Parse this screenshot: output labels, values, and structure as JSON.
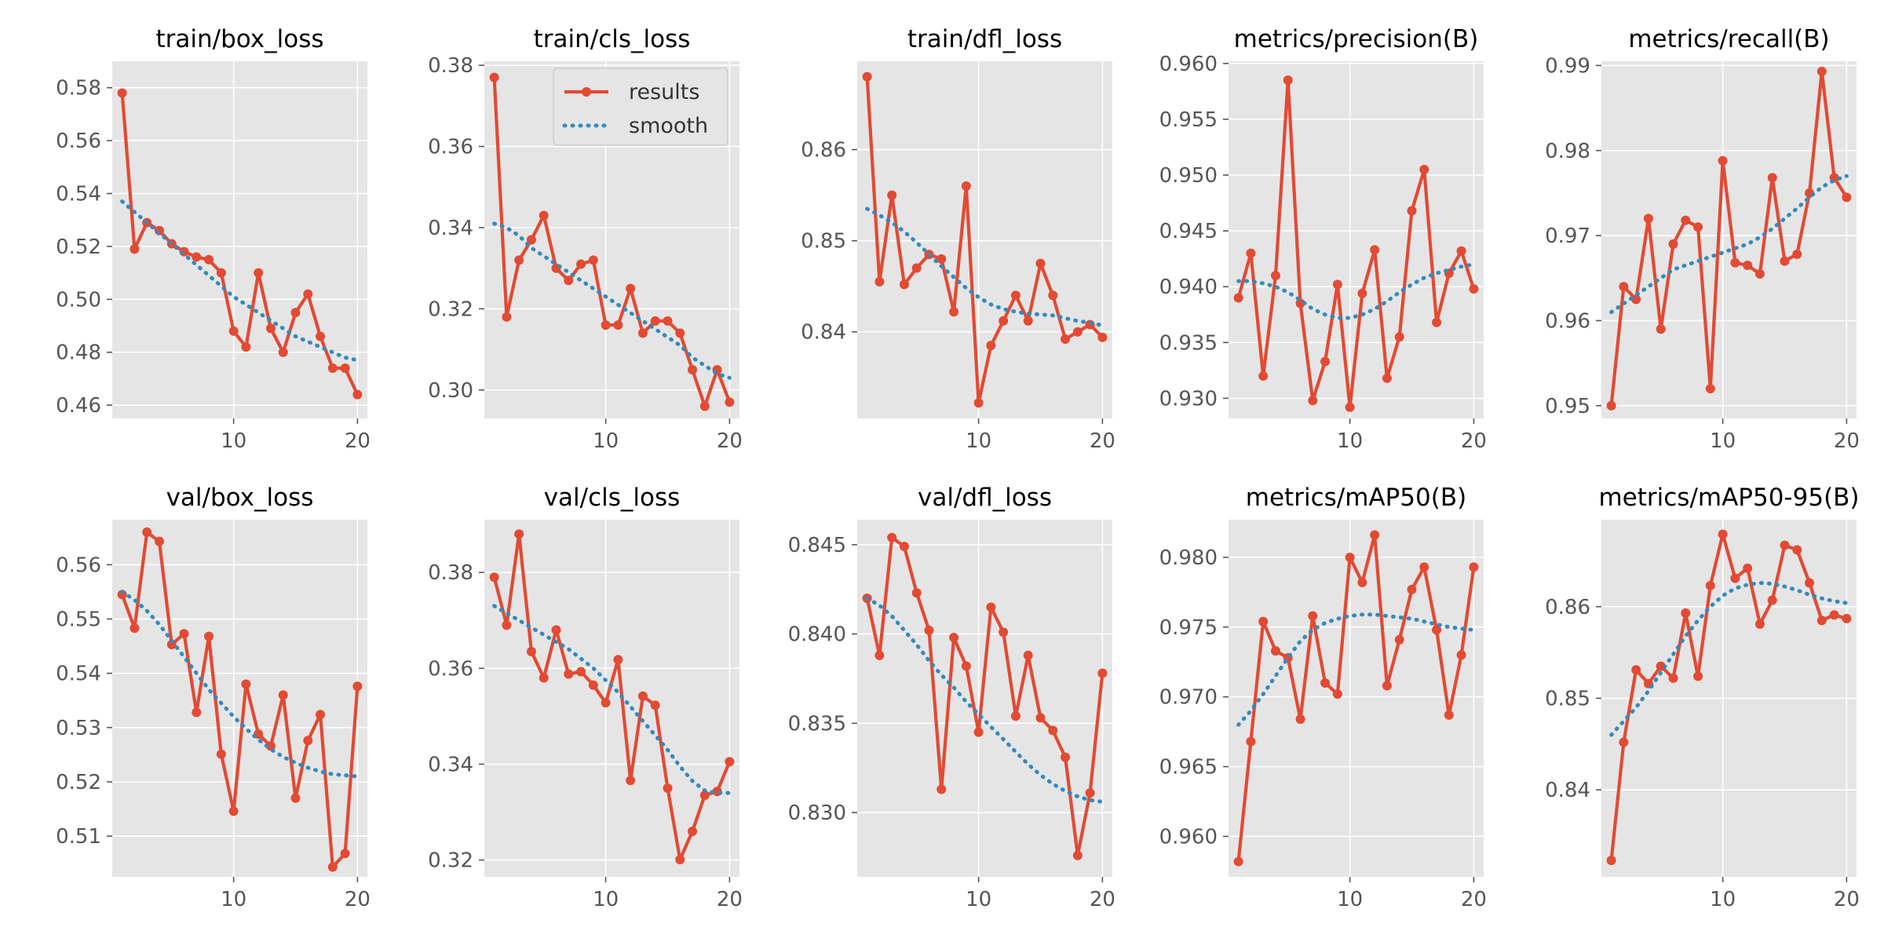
{
  "colors": {
    "results": "#e24a33",
    "smooth": "#348abd",
    "panel_bg": "#e5e5e5",
    "grid": "#ffffff"
  },
  "legend": {
    "results_label": "results",
    "smooth_label": "smooth"
  },
  "chart_data": [
    {
      "type": "line",
      "title": "train/box_loss",
      "x": [
        1,
        2,
        3,
        4,
        5,
        6,
        7,
        8,
        9,
        10,
        11,
        12,
        13,
        14,
        15,
        16,
        17,
        18,
        19,
        20
      ],
      "series": [
        {
          "name": "results",
          "values": [
            0.578,
            0.519,
            0.529,
            0.526,
            0.521,
            0.518,
            0.516,
            0.515,
            0.51,
            0.488,
            0.482,
            0.51,
            0.489,
            0.48,
            0.495,
            0.502,
            0.486,
            0.474,
            0.474,
            0.464
          ]
        },
        {
          "name": "smooth",
          "values": [
            0.537,
            0.533,
            0.529,
            0.525,
            0.521,
            0.517,
            0.513,
            0.509,
            0.505,
            0.501,
            0.498,
            0.495,
            0.492,
            0.489,
            0.486,
            0.484,
            0.482,
            0.48,
            0.478,
            0.477
          ]
        }
      ],
      "xlim": [
        0.2,
        20.8
      ],
      "ylim": [
        0.455,
        0.59
      ],
      "xticks": [
        10,
        20
      ],
      "yticks": [
        0.46,
        0.48,
        0.5,
        0.52,
        0.54,
        0.56,
        0.58
      ],
      "ytick_labels": [
        "0.46",
        "0.48",
        "0.50",
        "0.52",
        "0.54",
        "0.56",
        "0.58"
      ]
    },
    {
      "type": "line",
      "title": "train/cls_loss",
      "legend": "top-right",
      "x": [
        1,
        2,
        3,
        4,
        5,
        6,
        7,
        8,
        9,
        10,
        11,
        12,
        13,
        14,
        15,
        16,
        17,
        18,
        19,
        20
      ],
      "series": [
        {
          "name": "results",
          "values": [
            0.377,
            0.318,
            0.332,
            0.337,
            0.343,
            0.33,
            0.327,
            0.331,
            0.332,
            0.316,
            0.316,
            0.325,
            0.314,
            0.317,
            0.317,
            0.314,
            0.305,
            0.296,
            0.305,
            0.297
          ]
        },
        {
          "name": "smooth",
          "values": [
            0.341,
            0.34,
            0.338,
            0.335,
            0.333,
            0.331,
            0.329,
            0.327,
            0.325,
            0.323,
            0.321,
            0.319,
            0.317,
            0.315,
            0.313,
            0.311,
            0.308,
            0.306,
            0.304,
            0.303
          ]
        }
      ],
      "xlim": [
        0.2,
        20.8
      ],
      "ylim": [
        0.293,
        0.381
      ],
      "xticks": [
        10,
        20
      ],
      "yticks": [
        0.3,
        0.32,
        0.34,
        0.36,
        0.38
      ],
      "ytick_labels": [
        "0.30",
        "0.32",
        "0.34",
        "0.36",
        "0.38"
      ]
    },
    {
      "type": "line",
      "title": "train/dfl_loss",
      "x": [
        1,
        2,
        3,
        4,
        5,
        6,
        7,
        8,
        9,
        10,
        11,
        12,
        13,
        14,
        15,
        16,
        17,
        18,
        19,
        20
      ],
      "series": [
        {
          "name": "results",
          "values": [
            0.868,
            0.8455,
            0.855,
            0.8452,
            0.847,
            0.8485,
            0.848,
            0.8422,
            0.856,
            0.8322,
            0.8385,
            0.8412,
            0.844,
            0.8412,
            0.8475,
            0.844,
            0.8392,
            0.84,
            0.8408,
            0.8394
          ]
        },
        {
          "name": "smooth",
          "values": [
            0.8535,
            0.8528,
            0.852,
            0.851,
            0.8498,
            0.8485,
            0.8472,
            0.846,
            0.8448,
            0.8438,
            0.843,
            0.8425,
            0.8422,
            0.842,
            0.8419,
            0.8418,
            0.8415,
            0.8412,
            0.841,
            0.8407
          ]
        }
      ],
      "xlim": [
        0.2,
        20.8
      ],
      "ylim": [
        0.8305,
        0.8697
      ],
      "xticks": [
        10,
        20
      ],
      "yticks": [
        0.84,
        0.85,
        0.86
      ],
      "ytick_labels": [
        "0.84",
        "0.85",
        "0.86"
      ]
    },
    {
      "type": "line",
      "title": "metrics/precision(B)",
      "x": [
        1,
        2,
        3,
        4,
        5,
        6,
        7,
        8,
        9,
        10,
        11,
        12,
        13,
        14,
        15,
        16,
        17,
        18,
        19,
        20
      ],
      "series": [
        {
          "name": "results",
          "values": [
            0.939,
            0.943,
            0.932,
            0.941,
            0.9585,
            0.9385,
            0.9298,
            0.9333,
            0.9402,
            0.9292,
            0.9394,
            0.9433,
            0.9318,
            0.9355,
            0.9468,
            0.9505,
            0.9368,
            0.9412,
            0.9432,
            0.9398
          ]
        },
        {
          "name": "smooth",
          "values": [
            0.9405,
            0.9405,
            0.9403,
            0.94,
            0.9395,
            0.9388,
            0.938,
            0.9375,
            0.9372,
            0.9372,
            0.9375,
            0.938,
            0.9387,
            0.9395,
            0.9402,
            0.9408,
            0.9412,
            0.9415,
            0.9418,
            0.942
          ]
        }
      ],
      "xlim": [
        0.2,
        20.8
      ],
      "ylim": [
        0.9282,
        0.9602
      ],
      "xticks": [
        10,
        20
      ],
      "yticks": [
        0.93,
        0.935,
        0.94,
        0.945,
        0.95,
        0.955,
        0.96
      ],
      "ytick_labels": [
        "0.930",
        "0.935",
        "0.940",
        "0.945",
        "0.950",
        "0.955",
        "0.960"
      ]
    },
    {
      "type": "line",
      "title": "metrics/recall(B)",
      "x": [
        1,
        2,
        3,
        4,
        5,
        6,
        7,
        8,
        9,
        10,
        11,
        12,
        13,
        14,
        15,
        16,
        17,
        18,
        19,
        20
      ],
      "series": [
        {
          "name": "results",
          "values": [
            0.95,
            0.964,
            0.9625,
            0.972,
            0.959,
            0.969,
            0.9718,
            0.971,
            0.952,
            0.9788,
            0.9668,
            0.9665,
            0.9655,
            0.9768,
            0.967,
            0.9678,
            0.975,
            0.9893,
            0.9768,
            0.9745
          ]
        },
        {
          "name": "smooth",
          "values": [
            0.961,
            0.962,
            0.963,
            0.964,
            0.965,
            0.966,
            0.9665,
            0.967,
            0.9675,
            0.968,
            0.9685,
            0.969,
            0.9698,
            0.9708,
            0.972,
            0.9732,
            0.9745,
            0.9757,
            0.9765,
            0.977
          ]
        }
      ],
      "xlim": [
        0.2,
        20.8
      ],
      "ylim": [
        0.9485,
        0.9905
      ],
      "xticks": [
        10,
        20
      ],
      "yticks": [
        0.95,
        0.96,
        0.97,
        0.98,
        0.99
      ],
      "ytick_labels": [
        "0.95",
        "0.96",
        "0.97",
        "0.98",
        "0.99"
      ]
    },
    {
      "type": "line",
      "title": "val/box_loss",
      "x": [
        1,
        2,
        3,
        4,
        5,
        6,
        7,
        8,
        9,
        10,
        11,
        12,
        13,
        14,
        15,
        16,
        17,
        18,
        19,
        20
      ],
      "series": [
        {
          "name": "results",
          "values": [
            0.5545,
            0.5483,
            0.566,
            0.5643,
            0.5453,
            0.5473,
            0.5328,
            0.5468,
            0.5251,
            0.5146,
            0.538,
            0.5288,
            0.5266,
            0.536,
            0.517,
            0.5276,
            0.5324,
            0.5043,
            0.5068,
            0.5376
          ]
        },
        {
          "name": "smooth",
          "values": [
            0.555,
            0.5535,
            0.5515,
            0.549,
            0.546,
            0.543,
            0.54,
            0.537,
            0.5345,
            0.532,
            0.5298,
            0.5278,
            0.526,
            0.5246,
            0.5235,
            0.5226,
            0.5219,
            0.5214,
            0.5212,
            0.521
          ]
        }
      ],
      "xlim": [
        0.2,
        20.8
      ],
      "ylim": [
        0.5025,
        0.5683
      ],
      "xticks": [
        10,
        20
      ],
      "yticks": [
        0.51,
        0.52,
        0.53,
        0.54,
        0.55,
        0.56
      ],
      "ytick_labels": [
        "0.51",
        "0.52",
        "0.53",
        "0.54",
        "0.55",
        "0.56"
      ]
    },
    {
      "type": "line",
      "title": "val/cls_loss",
      "x": [
        1,
        2,
        3,
        4,
        5,
        6,
        7,
        8,
        9,
        10,
        11,
        12,
        13,
        14,
        15,
        16,
        17,
        18,
        19,
        20
      ],
      "series": [
        {
          "name": "results",
          "values": [
            0.379,
            0.369,
            0.388,
            0.3635,
            0.358,
            0.368,
            0.3588,
            0.3593,
            0.3565,
            0.3528,
            0.3618,
            0.3366,
            0.3542,
            0.3523,
            0.335,
            0.3201,
            0.326,
            0.3335,
            0.3343,
            0.3405
          ]
        },
        {
          "name": "smooth",
          "values": [
            0.373,
            0.3715,
            0.37,
            0.3685,
            0.367,
            0.3655,
            0.364,
            0.362,
            0.36,
            0.3575,
            0.355,
            0.352,
            0.349,
            0.346,
            0.343,
            0.3395,
            0.3365,
            0.3345,
            0.334,
            0.334
          ]
        }
      ],
      "xlim": [
        0.2,
        20.8
      ],
      "ylim": [
        0.3165,
        0.391
      ],
      "xticks": [
        10,
        20
      ],
      "yticks": [
        0.32,
        0.34,
        0.36,
        0.38
      ],
      "ytick_labels": [
        "0.32",
        "0.34",
        "0.36",
        "0.38"
      ]
    },
    {
      "type": "line",
      "title": "val/dfl_loss",
      "x": [
        1,
        2,
        3,
        4,
        5,
        6,
        7,
        8,
        9,
        10,
        11,
        12,
        13,
        14,
        15,
        16,
        17,
        18,
        19,
        20
      ],
      "series": [
        {
          "name": "results",
          "values": [
            0.842,
            0.8388,
            0.8454,
            0.8449,
            0.8423,
            0.8402,
            0.8313,
            0.8398,
            0.8382,
            0.8345,
            0.8415,
            0.8401,
            0.8354,
            0.8388,
            0.8353,
            0.8346,
            0.8331,
            0.8276,
            0.8311,
            0.8378
          ]
        },
        {
          "name": "smooth",
          "values": [
            0.842,
            0.8416,
            0.841,
            0.8402,
            0.8394,
            0.8385,
            0.8377,
            0.837,
            0.8362,
            0.8355,
            0.8348,
            0.8341,
            0.8334,
            0.8327,
            0.8321,
            0.8316,
            0.8312,
            0.8309,
            0.8307,
            0.8306
          ]
        }
      ],
      "xlim": [
        0.2,
        20.8
      ],
      "ylim": [
        0.8264,
        0.8464
      ],
      "xticks": [
        10,
        20
      ],
      "yticks": [
        0.83,
        0.835,
        0.84,
        0.845
      ],
      "ytick_labels": [
        "0.830",
        "0.835",
        "0.840",
        "0.845"
      ]
    },
    {
      "type": "line",
      "title": "metrics/mAP50(B)",
      "x": [
        1,
        2,
        3,
        4,
        5,
        6,
        7,
        8,
        9,
        10,
        11,
        12,
        13,
        14,
        15,
        16,
        17,
        18,
        19,
        20
      ],
      "series": [
        {
          "name": "results",
          "values": [
            0.9582,
            0.9668,
            0.9754,
            0.9733,
            0.9728,
            0.9684,
            0.9758,
            0.971,
            0.9702,
            0.98,
            0.9782,
            0.9816,
            0.9708,
            0.9741,
            0.9777,
            0.9793,
            0.9748,
            0.9687,
            0.973,
            0.9793
          ]
        },
        {
          "name": "smooth",
          "values": [
            0.968,
            0.969,
            0.9702,
            0.9715,
            0.9728,
            0.974,
            0.9748,
            0.9753,
            0.9756,
            0.9758,
            0.9759,
            0.9759,
            0.9758,
            0.9757,
            0.9756,
            0.9754,
            0.9752,
            0.975,
            0.9749,
            0.9748
          ]
        }
      ],
      "xlim": [
        0.2,
        20.8
      ],
      "ylim": [
        0.9571,
        0.9827
      ],
      "xticks": [
        10,
        20
      ],
      "yticks": [
        0.96,
        0.965,
        0.97,
        0.975,
        0.98
      ],
      "ytick_labels": [
        "0.960",
        "0.965",
        "0.970",
        "0.975",
        "0.980"
      ]
    },
    {
      "type": "line",
      "title": "metrics/mAP50-95(B)",
      "x": [
        1,
        2,
        3,
        4,
        5,
        6,
        7,
        8,
        9,
        10,
        11,
        12,
        13,
        14,
        15,
        16,
        17,
        18,
        19,
        20
      ],
      "series": [
        {
          "name": "results",
          "values": [
            0.8323,
            0.8452,
            0.8531,
            0.8516,
            0.8535,
            0.8522,
            0.8593,
            0.8524,
            0.8623,
            0.8679,
            0.8631,
            0.8642,
            0.8581,
            0.8607,
            0.8667,
            0.8662,
            0.8626,
            0.8585,
            0.8591,
            0.8587
          ]
        },
        {
          "name": "smooth",
          "values": [
            0.846,
            0.8475,
            0.849,
            0.8508,
            0.8528,
            0.8548,
            0.8568,
            0.8585,
            0.86,
            0.8612,
            0.862,
            0.8624,
            0.8626,
            0.8625,
            0.8622,
            0.8618,
            0.8613,
            0.8609,
            0.8606,
            0.8604
          ]
        }
      ],
      "xlim": [
        0.2,
        20.8
      ],
      "ylim": [
        0.8305,
        0.8695
      ],
      "xticks": [
        10,
        20
      ],
      "yticks": [
        0.84,
        0.85,
        0.86
      ],
      "ytick_labels": [
        "0.84",
        "0.85",
        "0.86"
      ]
    }
  ]
}
